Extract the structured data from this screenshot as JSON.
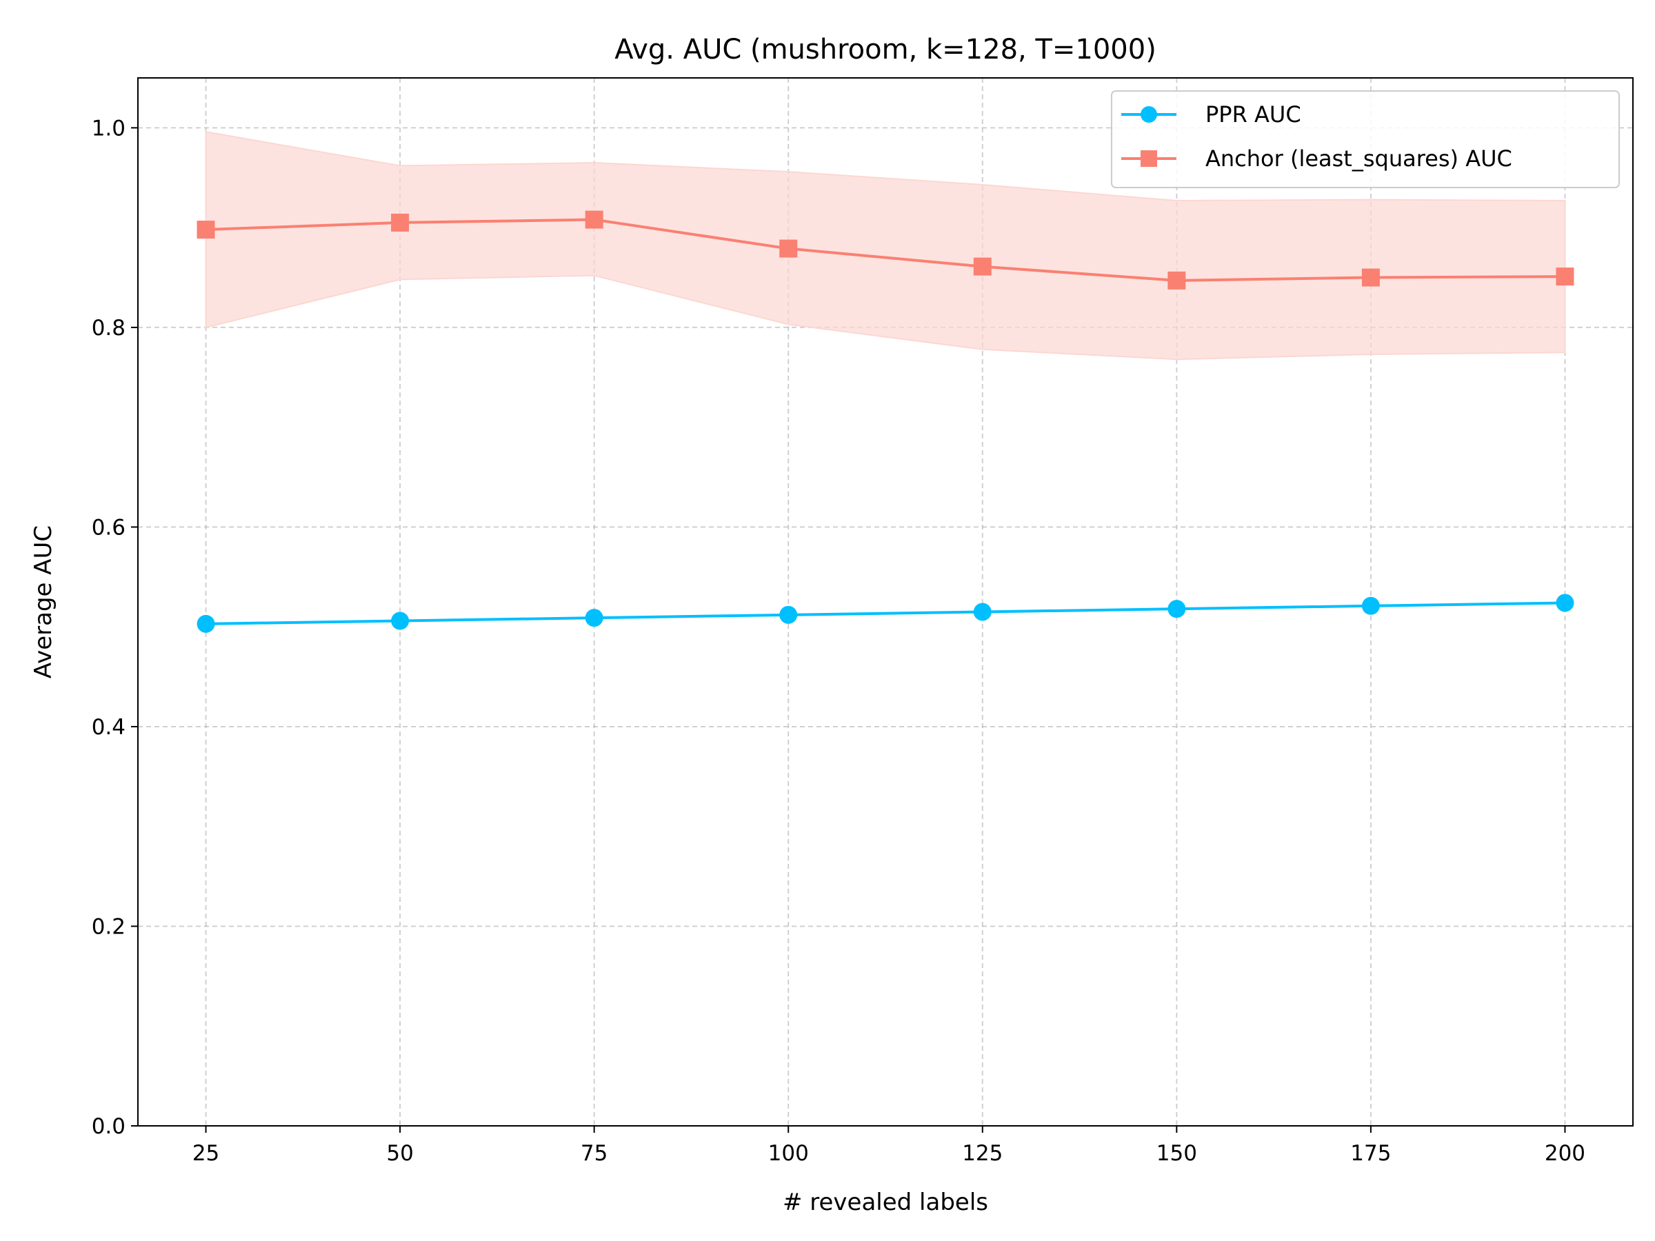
{
  "chart_data": {
    "type": "line",
    "title": "Avg. AUC (mushroom, k=128, T=1000)",
    "xlabel": "# revealed labels",
    "ylabel": "Average AUC",
    "x": [
      25,
      50,
      75,
      100,
      125,
      150,
      175,
      200
    ],
    "xlim": [
      16.25,
      208.75
    ],
    "ylim": [
      0,
      1.05
    ],
    "xticks": [
      "25",
      "50",
      "75",
      "100",
      "125",
      "150",
      "175",
      "200"
    ],
    "yticks": [
      "0.0",
      "0.2",
      "0.4",
      "0.6",
      "0.8",
      "1.0"
    ],
    "grid": true,
    "legend_position": "top-right",
    "series": [
      {
        "name": "PPR AUC",
        "marker": "circle",
        "color": "#00bfff",
        "values": [
          0.503,
          0.506,
          0.509,
          0.512,
          0.515,
          0.518,
          0.521,
          0.524
        ]
      },
      {
        "name": "Anchor (least_squares) AUC",
        "marker": "square",
        "color": "#fa8072",
        "band_color": "#fcd7d1",
        "values": [
          0.898,
          0.905,
          0.908,
          0.879,
          0.861,
          0.847,
          0.85,
          0.851
        ],
        "band_lower": [
          0.8,
          0.848,
          0.852,
          0.803,
          0.778,
          0.768,
          0.773,
          0.775
        ],
        "band_upper": [
          0.996,
          0.962,
          0.965,
          0.956,
          0.943,
          0.927,
          0.928,
          0.927
        ]
      }
    ]
  }
}
